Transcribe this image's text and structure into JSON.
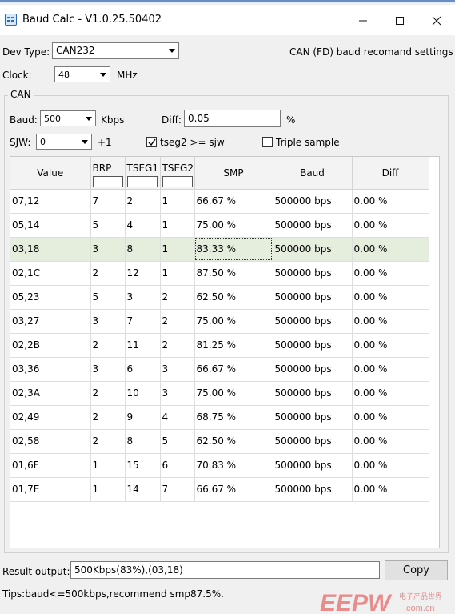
{
  "window": {
    "title": "Baud Calc - V1.0.25.50402"
  },
  "top": {
    "dev_type_label": "Dev Type:",
    "dev_type_value": "CAN232",
    "recommend_link": "CAN (FD) baud recomand settings",
    "clock_label": "Clock:",
    "clock_value": "48",
    "clock_unit": "MHz"
  },
  "can_group": {
    "title": "CAN",
    "baud_label": "Baud:",
    "baud_value": "500",
    "baud_unit": "Kbps",
    "diff_label": "Diff:",
    "diff_value": "0.05",
    "diff_unit": "%",
    "sjw_label": "SJW:",
    "sjw_value": "0",
    "sjw_suffix": "+1",
    "tseg2_label": "tseg2 >= sjw",
    "tseg2_checked": true,
    "triple_label": "Triple sample",
    "triple_checked": false
  },
  "table": {
    "columns": [
      "Value",
      "BRP",
      "TSEG1",
      "TSEG2",
      "SMP",
      "Baud",
      "Diff"
    ],
    "selected_row": 2,
    "rows": [
      [
        "07,12",
        "7",
        "2",
        "1",
        "66.67 %",
        "500000 bps",
        "0.00 %"
      ],
      [
        "05,14",
        "5",
        "4",
        "1",
        "75.00 %",
        "500000 bps",
        "0.00 %"
      ],
      [
        "03,18",
        "3",
        "8",
        "1",
        "83.33 %",
        "500000 bps",
        "0.00 %"
      ],
      [
        "02,1C",
        "2",
        "12",
        "1",
        "87.50 %",
        "500000 bps",
        "0.00 %"
      ],
      [
        "05,23",
        "5",
        "3",
        "2",
        "62.50 %",
        "500000 bps",
        "0.00 %"
      ],
      [
        "03,27",
        "3",
        "7",
        "2",
        "75.00 %",
        "500000 bps",
        "0.00 %"
      ],
      [
        "02,2B",
        "2",
        "11",
        "2",
        "81.25 %",
        "500000 bps",
        "0.00 %"
      ],
      [
        "03,36",
        "3",
        "6",
        "3",
        "66.67 %",
        "500000 bps",
        "0.00 %"
      ],
      [
        "02,3A",
        "2",
        "10",
        "3",
        "75.00 %",
        "500000 bps",
        "0.00 %"
      ],
      [
        "02,49",
        "2",
        "9",
        "4",
        "68.75 %",
        "500000 bps",
        "0.00 %"
      ],
      [
        "02,58",
        "2",
        "8",
        "5",
        "62.50 %",
        "500000 bps",
        "0.00 %"
      ],
      [
        "01,6F",
        "1",
        "15",
        "6",
        "70.83 %",
        "500000 bps",
        "0.00 %"
      ],
      [
        "01,7E",
        "1",
        "14",
        "7",
        "66.67 %",
        "500000 bps",
        "0.00 %"
      ]
    ]
  },
  "bottom": {
    "result_label": "Result output:",
    "result_value": "500Kbps(83%),(03,18)",
    "copy_label": "Copy",
    "tips": "Tips:baud<=500kbps,recommend smp87.5%."
  },
  "watermark": {
    "brand": "EEPW",
    "cn_text": "电子产品世界",
    "domain": ".com.cn",
    "brand_color": "#e63a3a"
  },
  "icons": {
    "app": "calculator-icon",
    "minimize": "minimize-icon",
    "maximize": "maximize-icon",
    "close": "close-icon",
    "dropdown": "chevron-down-icon",
    "check": "checkmark-icon"
  }
}
